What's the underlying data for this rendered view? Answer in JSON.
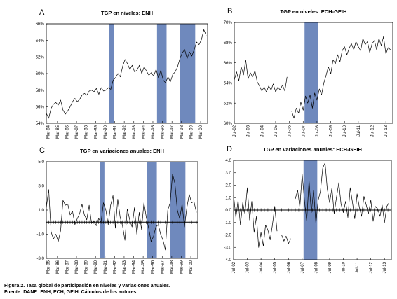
{
  "caption": {
    "line1": "Figura 2. Tasa global de participación en niveles y variaciones anuales.",
    "line2": "Fuente: DANE: ENH, ECH, GEIH. Cálculos de los autores."
  },
  "colors": {
    "band": "#6f89bd",
    "line": "#000000",
    "frame": "#000000"
  },
  "chart_data": [
    {
      "letter": "A",
      "type": "line",
      "title": "TGP en niveles: ENH",
      "xlabel": "",
      "ylabel": "",
      "x_ticks": [
        "Mar-84",
        "Mar-85",
        "Mar-86",
        "Mar-87",
        "Mar-88",
        "Mar-89",
        "Mar-90",
        "Mar-91",
        "Mar-92",
        "Mar-93",
        "Mar-94",
        "Mar-95",
        "Mar-96",
        "Mar-97",
        "Mar-98",
        "Mar-99",
        "Mar-00"
      ],
      "y_ticks": [
        "54%",
        "56%",
        "58%",
        "60%",
        "62%",
        "64%",
        "66%"
      ],
      "ylim": [
        54,
        66
      ],
      "x_range": [
        1984.0,
        2000.9
      ],
      "shaded_periods": [
        [
          1990.6,
          1991.1
        ],
        [
          1995.6,
          1996.6
        ],
        [
          1998.0,
          1999.6
        ]
      ],
      "zero_line": false,
      "series": [
        {
          "x": [
            1984.0,
            1984.25,
            1984.5,
            1984.75,
            1985.0,
            1985.25,
            1985.5,
            1985.75,
            1986.0,
            1986.25,
            1986.5,
            1986.75,
            1987.0,
            1987.25,
            1987.5,
            1987.75,
            1988.0,
            1988.25,
            1988.5,
            1988.75,
            1989.0,
            1989.25,
            1989.5,
            1989.75,
            1990.0,
            1990.25,
            1990.5,
            1990.75,
            1991.0,
            1991.25,
            1991.5,
            1991.75,
            1992.0,
            1992.25,
            1992.5,
            1992.75,
            1993.0,
            1993.25,
            1993.5,
            1993.75,
            1994.0,
            1994.25,
            1994.5,
            1994.75,
            1995.0,
            1995.25,
            1995.5,
            1995.75,
            1996.0,
            1996.25,
            1996.5,
            1996.75,
            1997.0,
            1997.25,
            1997.5,
            1997.75,
            1998.0,
            1998.25,
            1998.5,
            1998.75,
            1999.0,
            1999.25,
            1999.5,
            1999.75,
            2000.0,
            2000.25,
            2000.5,
            2000.75
          ],
          "values": [
            55.2,
            54.6,
            55.8,
            56.3,
            56.5,
            56.2,
            56.8,
            55.6,
            55.1,
            55.5,
            56.0,
            56.6,
            57.0,
            56.6,
            56.9,
            57.4,
            57.6,
            57.4,
            57.9,
            58.0,
            57.8,
            58.2,
            57.5,
            58.3,
            57.9,
            58.0,
            58.3,
            58.1,
            59.2,
            59.5,
            60.0,
            59.6,
            60.9,
            61.7,
            61.2,
            60.5,
            61.0,
            60.2,
            60.4,
            61.0,
            60.0,
            60.8,
            60.3,
            59.8,
            60.1,
            59.7,
            60.5,
            59.5,
            60.4,
            59.2,
            58.9,
            59.6,
            59.0,
            59.9,
            60.2,
            60.8,
            61.8,
            62.5,
            62.9,
            61.8,
            62.6,
            62.1,
            62.9,
            63.8,
            63.5,
            64.1,
            65.3,
            64.6
          ]
        }
      ]
    },
    {
      "letter": "B",
      "type": "line",
      "title": "TGP en niveles: ECH-GEIH",
      "xlabel": "",
      "ylabel": "",
      "x_ticks": [
        "Jul-02",
        "Jul-03",
        "Jul-04",
        "Jul-05",
        "Jul-06",
        "Jul-07",
        "Jul-08",
        "Jul-09",
        "Jul-10",
        "Jul-11",
        "Jul-12",
        "Jul-13"
      ],
      "y_ticks": [
        "60%",
        "62%",
        "64%",
        "66%",
        "68%",
        "70%"
      ],
      "ylim": [
        60,
        70
      ],
      "x_range": [
        2002.5,
        2014.0
      ],
      "shaded_periods": [
        [
          2007.6,
          2008.6
        ]
      ],
      "zero_line": false,
      "series": [
        {
          "x": [
            2002.5,
            2002.67,
            2002.83,
            2003.0,
            2003.17,
            2003.33,
            2003.5,
            2003.67,
            2003.83,
            2004.0,
            2004.17,
            2004.33,
            2004.5,
            2004.67,
            2004.83,
            2005.0,
            2005.17,
            2005.33,
            2005.5,
            2005.67,
            2005.83,
            2006.0,
            2006.17,
            2006.33
          ],
          "values": [
            64.3,
            65.1,
            64.2,
            65.6,
            64.8,
            66.3,
            64.4,
            65.0,
            64.6,
            65.2,
            64.1,
            63.7,
            63.2,
            63.6,
            63.1,
            63.7,
            63.3,
            63.9,
            63.1,
            63.6,
            63.3,
            63.8,
            63.2,
            64.6
          ]
        },
        {
          "x": [
            2006.67,
            2006.83,
            2007.0,
            2007.17,
            2007.33,
            2007.5,
            2007.67,
            2007.83,
            2008.0,
            2008.17,
            2008.33,
            2008.5,
            2008.67,
            2008.83,
            2009.0,
            2009.17,
            2009.33,
            2009.5,
            2009.67,
            2009.83,
            2010.0,
            2010.17,
            2010.33,
            2010.5,
            2010.67,
            2010.83,
            2011.0,
            2011.17,
            2011.33,
            2011.5,
            2011.67,
            2011.83,
            2012.0,
            2012.17,
            2012.33,
            2012.5,
            2012.67,
            2012.83,
            2013.0,
            2013.17,
            2013.33,
            2013.5,
            2013.67,
            2013.83
          ],
          "values": [
            61.2,
            60.5,
            61.5,
            61.0,
            62.1,
            61.3,
            62.7,
            62.0,
            62.8,
            61.5,
            63.0,
            62.3,
            63.4,
            62.8,
            64.0,
            64.8,
            65.6,
            64.9,
            66.3,
            65.9,
            66.8,
            66.1,
            67.2,
            67.6,
            66.8,
            67.4,
            67.9,
            67.3,
            68.1,
            67.6,
            67.2,
            68.4,
            67.8,
            68.1,
            67.0,
            67.9,
            68.2,
            67.3,
            68.4,
            67.7,
            68.6,
            66.9,
            67.5,
            67.3
          ]
        }
      ]
    },
    {
      "letter": "C",
      "type": "line",
      "title": "TGP en variaciones anuales: ENH",
      "xlabel": "",
      "ylabel": "",
      "x_ticks": [
        "Mar-85",
        "Mar-86",
        "Mar-87",
        "Mar-88",
        "Mar-89",
        "Mar-90",
        "Mar-91",
        "Mar-92",
        "Mar-93",
        "Mar-94",
        "Mar-95",
        "Mar-96",
        "Mar-97",
        "Mar-98",
        "Mar-99",
        "Mar-00"
      ],
      "y_ticks": [
        "-3.0",
        "-1.0",
        "1.0",
        "3.0",
        "5.0"
      ],
      "ylim": [
        -3,
        5
      ],
      "x_range": [
        1985.0,
        2000.9
      ],
      "shaded_periods": [
        [
          1990.6,
          1991.1
        ],
        [
          1995.6,
          1996.6
        ],
        [
          1998.0,
          1999.6
        ]
      ],
      "zero_line": true,
      "series": [
        {
          "x": [
            1985.0,
            1985.25,
            1985.5,
            1985.75,
            1986.0,
            1986.25,
            1986.5,
            1986.75,
            1987.0,
            1987.25,
            1987.5,
            1987.75,
            1988.0,
            1988.25,
            1988.5,
            1988.75,
            1989.0,
            1989.25,
            1989.5,
            1989.75,
            1990.0,
            1990.25,
            1990.5,
            1990.75,
            1991.0,
            1991.25,
            1991.5,
            1991.75,
            1992.0,
            1992.25,
            1992.5,
            1992.75,
            1993.0,
            1993.25,
            1993.5,
            1993.75,
            1994.0,
            1994.25,
            1994.5,
            1994.75,
            1995.0,
            1995.25,
            1995.5,
            1995.75,
            1996.0,
            1996.25,
            1996.5,
            1996.75,
            1997.0,
            1997.25,
            1997.5,
            1997.75,
            1998.0,
            1998.25,
            1998.5,
            1998.75,
            1999.0,
            1999.25,
            1999.5,
            1999.75,
            2000.0,
            2000.25,
            2000.5,
            2000.75
          ],
          "values": [
            1.2,
            2.7,
            -0.8,
            -1.4,
            -1.0,
            -1.6,
            -0.7,
            1.8,
            1.4,
            1.5,
            0.6,
            0.9,
            -0.2,
            0.3,
            0.7,
            1.5,
            0.6,
            0.2,
            1.4,
            -0.1,
            0.1,
            -0.3,
            0.3,
            0.0,
            1.6,
            1.0,
            -0.2,
            1.4,
            2.2,
            -0.5,
            1.9,
            0.4,
            -0.3,
            -1.5,
            1.1,
            0.2,
            -0.4,
            1.2,
            -1.0,
            0.8,
            -0.6,
            1.6,
            0.4,
            -0.5,
            -1.6,
            -1.2,
            -0.4,
            -0.2,
            -1.0,
            -1.5,
            -2.3,
            1.0,
            1.6,
            4.0,
            3.2,
            1.0,
            0.3,
            1.5,
            -0.4,
            1.2,
            2.3,
            1.6,
            1.7,
            0.8
          ]
        }
      ]
    },
    {
      "letter": "D",
      "type": "line",
      "title": "TGP en variaciones anuales: ECH-GEIH",
      "xlabel": "",
      "ylabel": "",
      "x_ticks": [
        "Jul-02",
        "Jul-03",
        "Jul-04",
        "Jul-05",
        "Jul-06",
        "Jul-07",
        "Jul-08",
        "Jul-09",
        "Jul-10",
        "Jul-11",
        "Jul-12",
        "Jul-13"
      ],
      "y_ticks": [
        "-4.0",
        "-3.0",
        "-2.0",
        "-1.0",
        "0.0",
        "1.0",
        "2.0",
        "3.0",
        "4.0"
      ],
      "ylim": [
        -4,
        4
      ],
      "x_range": [
        2002.5,
        2014.0
      ],
      "shaded_periods": [
        [
          2007.6,
          2008.6
        ]
      ],
      "zero_line": true,
      "series": [
        {
          "x": [
            2002.5,
            2002.67,
            2002.83,
            2003.0,
            2003.17,
            2003.33,
            2003.5,
            2003.67,
            2003.83,
            2004.0,
            2004.17,
            2004.33,
            2004.5,
            2004.67,
            2004.83,
            2005.0,
            2005.17,
            2005.33,
            2005.5,
            2005.67
          ],
          "values": [
            1.2,
            -0.6,
            0.8,
            -1.2,
            0.6,
            -0.3,
            1.8,
            -0.8,
            0.7,
            -1.8,
            -0.5,
            -3.0,
            -1.8,
            -2.9,
            -1.2,
            -1.6,
            -2.4,
            -1.2,
            0.3,
            -1.7
          ]
        },
        {
          "x": [
            2006.0,
            2006.17,
            2006.33,
            2006.5,
            2006.67
          ],
          "values": [
            -2.0,
            -2.5,
            -2.1,
            -2.7,
            -2.3
          ]
        },
        {
          "x": [
            2007.0,
            2007.17,
            2007.33,
            2007.5,
            2007.67,
            2007.83,
            2008.0,
            2008.17,
            2008.33,
            2008.5,
            2008.67,
            2008.83,
            2009.0,
            2009.17,
            2009.33,
            2009.5,
            2009.67,
            2009.83,
            2010.0,
            2010.17,
            2010.33,
            2010.5,
            2010.67,
            2010.83,
            2011.0,
            2011.17,
            2011.33,
            2011.5,
            2011.67,
            2011.83,
            2012.0,
            2012.17,
            2012.33,
            2012.5,
            2012.67,
            2012.83,
            2013.0,
            2013.17,
            2013.33,
            2013.5,
            2013.67,
            2013.83
          ],
          "values": [
            0.9,
            1.6,
            0.2,
            2.9,
            0.7,
            -0.9,
            2.4,
            -0.2,
            1.6,
            -1.1,
            0.8,
            1.5,
            3.4,
            3.8,
            1.7,
            0.6,
            1.8,
            -0.3,
            1.0,
            2.2,
            0.5,
            -0.2,
            0.7,
            -0.6,
            1.8,
            0.6,
            -0.7,
            1.3,
            0.2,
            -0.5,
            1.1,
            0.4,
            -0.3,
            0.8,
            -0.9,
            0.3,
            0.1,
            -0.5,
            0.4,
            -1.0,
            0.3,
            0.6
          ]
        }
      ]
    }
  ]
}
